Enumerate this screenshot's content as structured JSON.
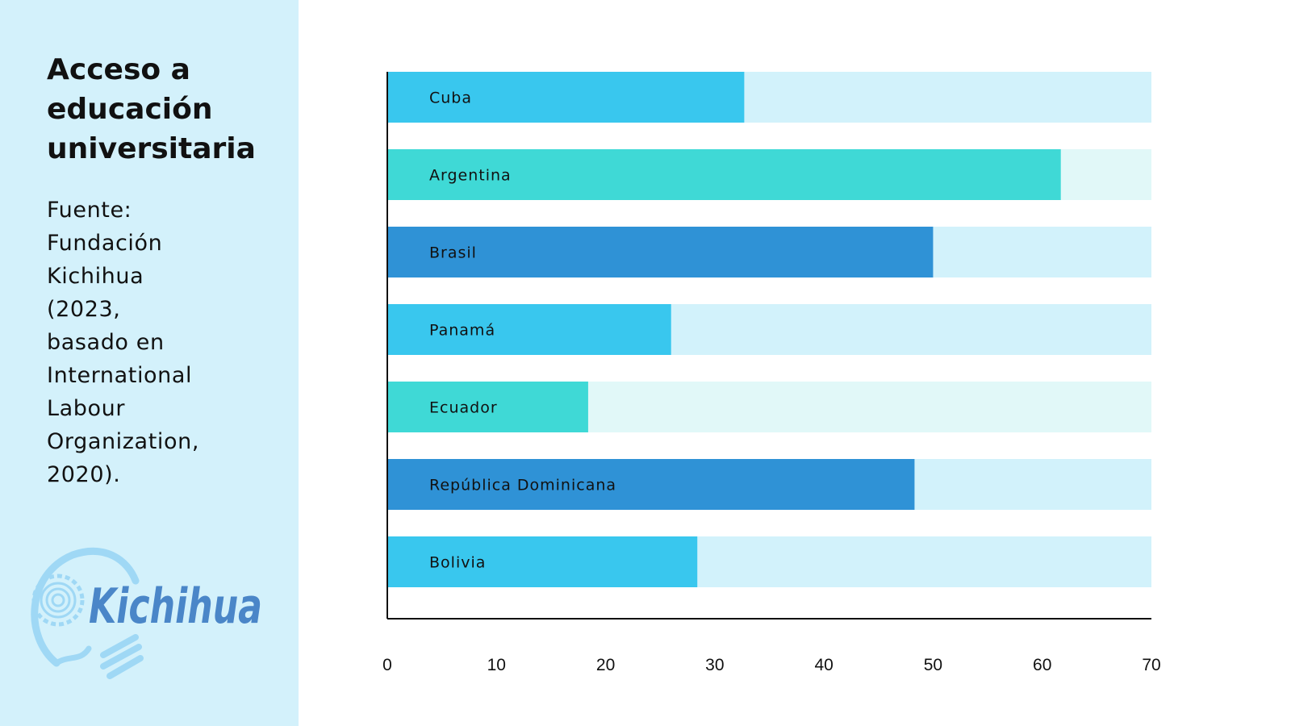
{
  "sidebar": {
    "title_lines": [
      "Acceso a",
      "educación",
      "universitaria"
    ],
    "source_lines": [
      "Fuente:",
      "Fundación",
      "Kichihua",
      "(2023,",
      "basado en",
      "International",
      "Labour",
      "Organization,",
      "2020)."
    ],
    "logo_text": "Kichihua"
  },
  "chart_data": {
    "type": "bar",
    "orientation": "horizontal",
    "categories": [
      "Cuba",
      "Argentina",
      "Brasil",
      "Panamá",
      "Ecuador",
      "República Dominicana",
      "Bolivia"
    ],
    "values": [
      32.7,
      61.7,
      50.0,
      26.0,
      18.4,
      48.3,
      28.4
    ],
    "xlim": [
      0,
      70
    ],
    "xticks": [
      0,
      10,
      20,
      30,
      40,
      50,
      60,
      70
    ],
    "grid": false,
    "legend": "none",
    "colors": [
      {
        "bar": "#39c7ee",
        "track": "#d2f2fb"
      },
      {
        "bar": "#3fd9d6",
        "track": "#e1f8f8"
      },
      {
        "bar": "#2f92d6",
        "track": "#d2f2fb"
      },
      {
        "bar": "#39c7ee",
        "track": "#d2f2fb"
      },
      {
        "bar": "#3fd9d6",
        "track": "#e1f8f8"
      },
      {
        "bar": "#2f92d6",
        "track": "#d2f2fb"
      },
      {
        "bar": "#39c7ee",
        "track": "#d2f2fb"
      }
    ]
  }
}
